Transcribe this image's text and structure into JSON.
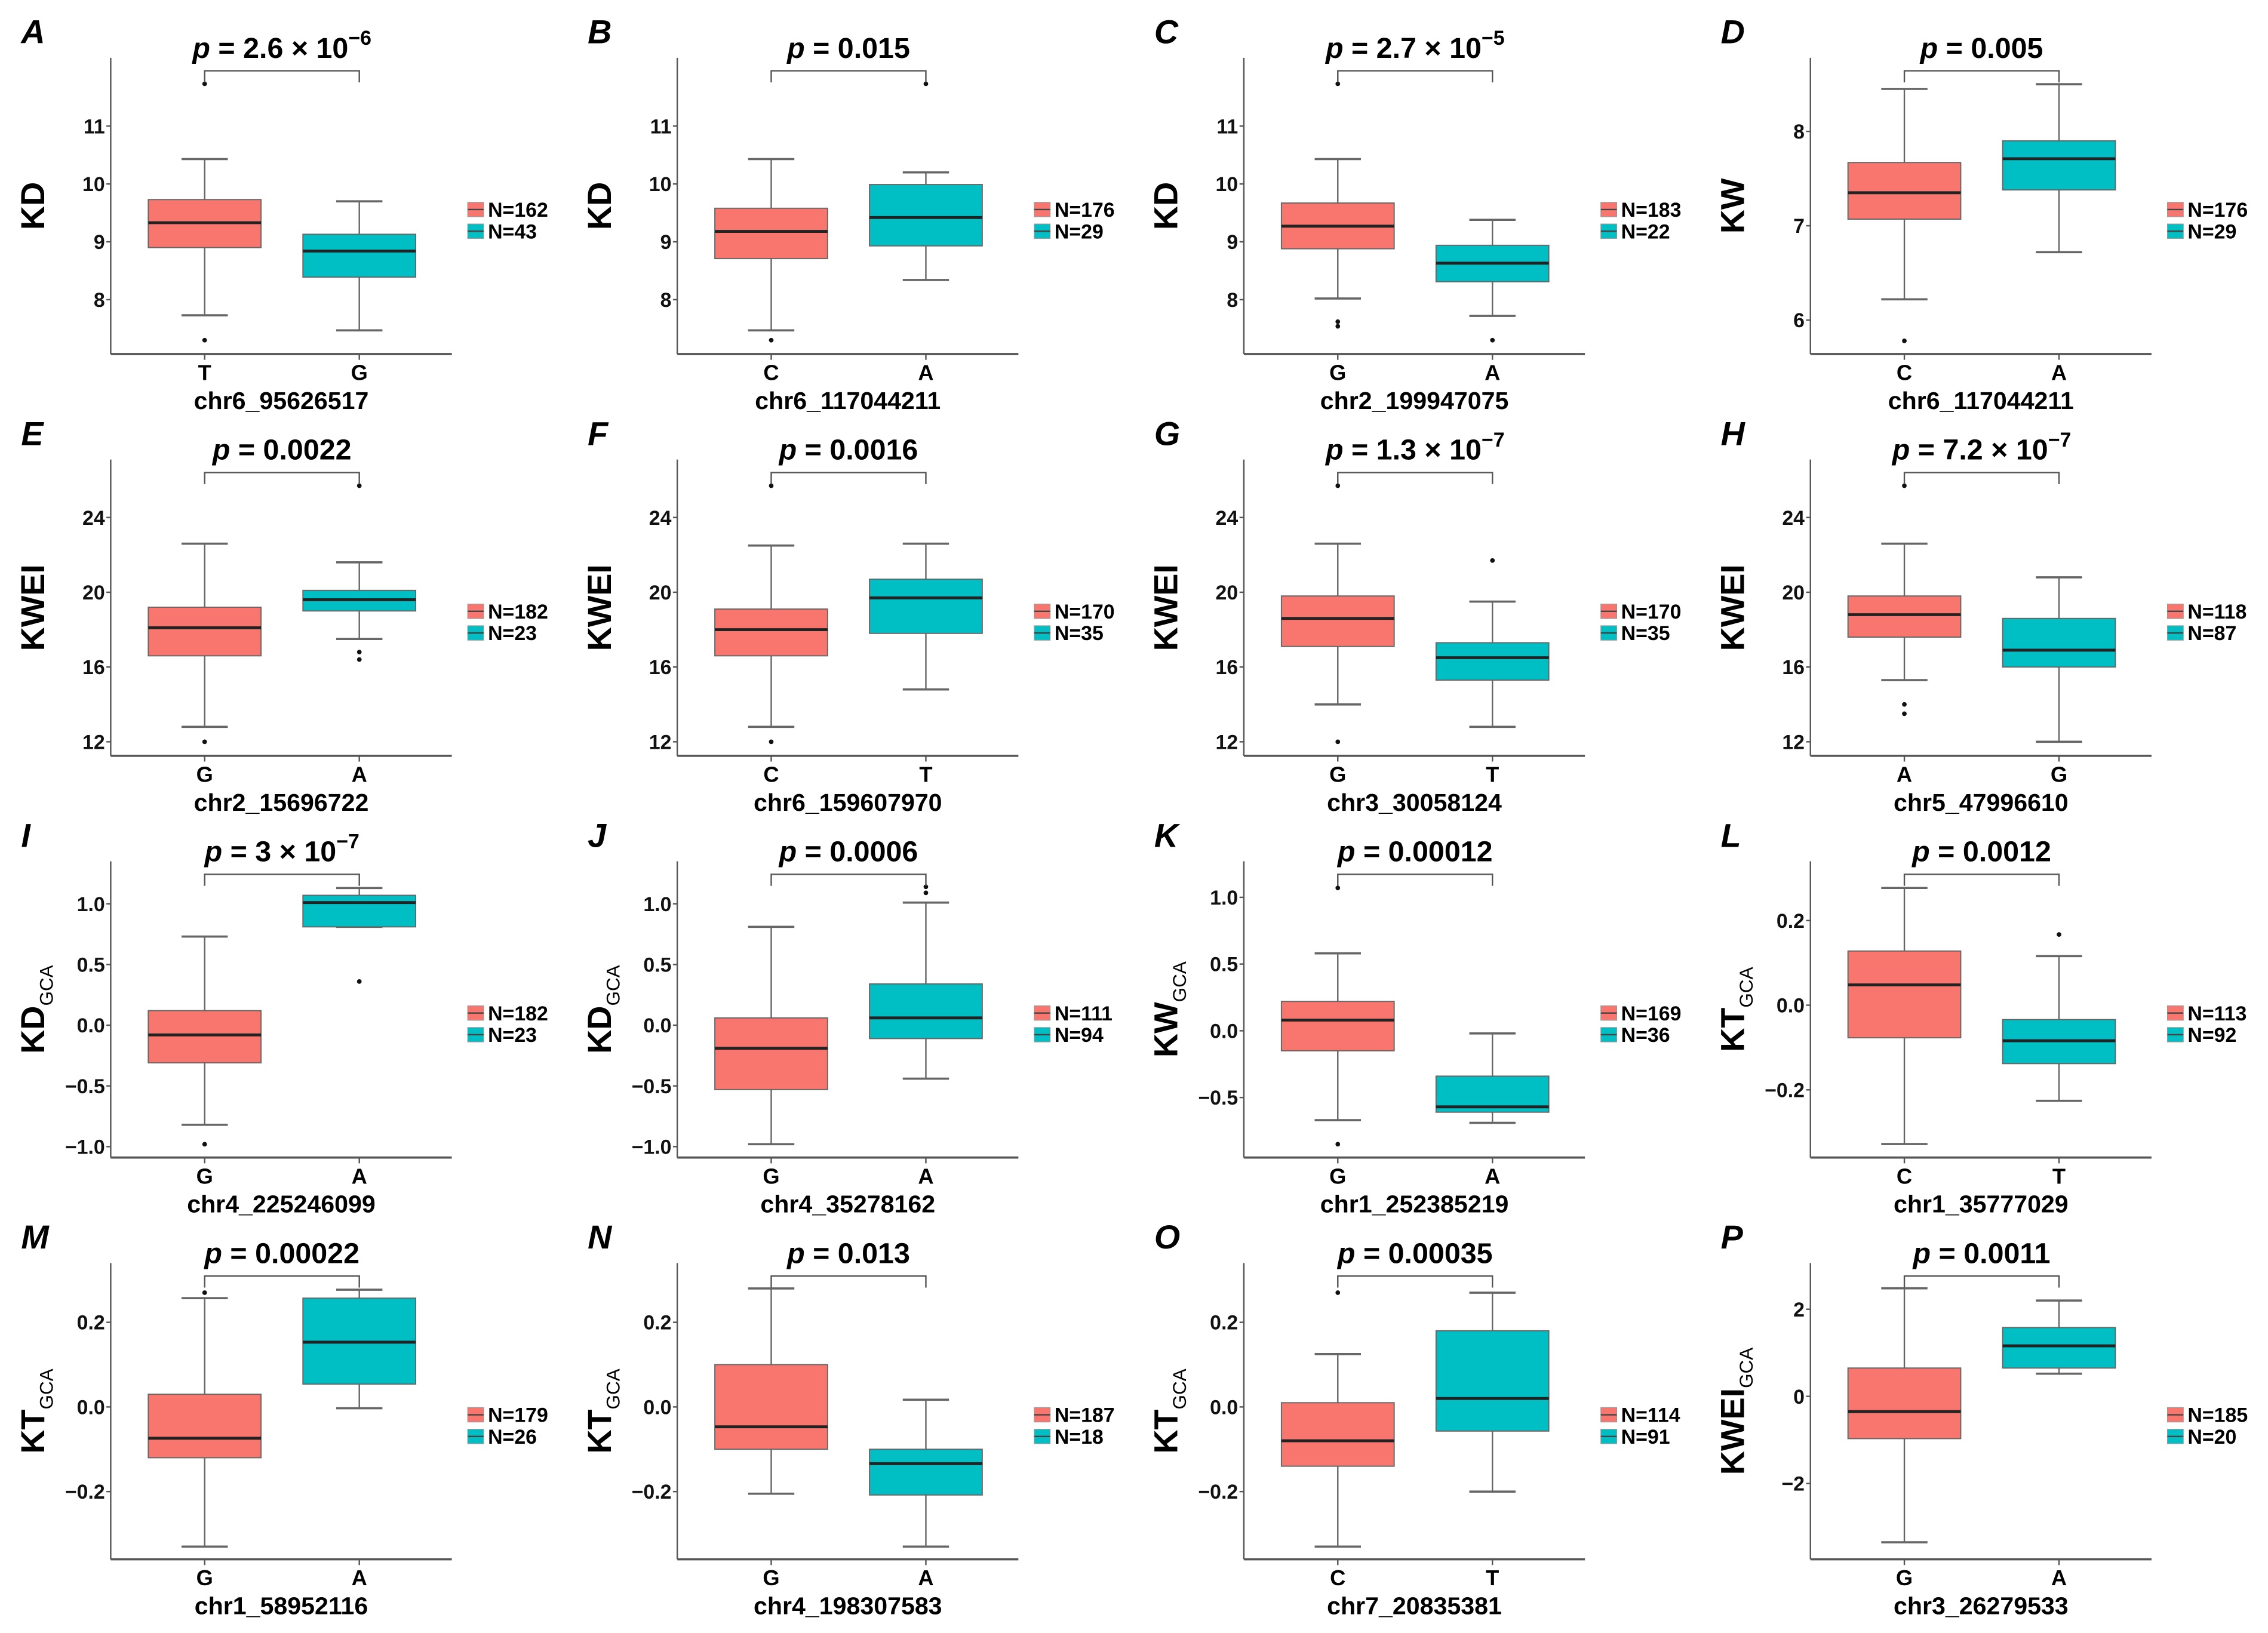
{
  "colors": {
    "group1": "#F8766D",
    "group2": "#00BFC4",
    "axis": "#555555",
    "whisker": "#666666",
    "median": "#222222"
  },
  "chart_data": [
    {
      "type": "box",
      "letter": "A",
      "p_label": "p",
      "p_value": " = 2.6 × 10",
      "p_exp": "−6",
      "ylabel": "KD",
      "ylabel_sub": "",
      "xlabel": "chr6_95626517",
      "ylim": [
        7.06,
        12.18
      ],
      "yticks": [
        8,
        9,
        10,
        11
      ],
      "ytick_labels": [
        "8",
        "9",
        "10",
        "11"
      ],
      "groups": [
        {
          "allele": "T",
          "n_label": "N=162",
          "low": 7.73,
          "q1": 8.9,
          "median": 9.33,
          "q3": 9.73,
          "high": 10.43,
          "outliers": [
            11.73,
            7.3
          ]
        },
        {
          "allele": "G",
          "n_label": "N=43",
          "low": 7.47,
          "q1": 8.39,
          "median": 8.84,
          "q3": 9.13,
          "high": 9.7,
          "outliers": []
        }
      ]
    },
    {
      "type": "box",
      "letter": "B",
      "p_label": "p",
      "p_value": " = 0.015",
      "p_exp": "",
      "ylabel": "KD",
      "ylabel_sub": "",
      "xlabel": "chr6_117044211",
      "ylim": [
        7.06,
        12.18
      ],
      "yticks": [
        8,
        9,
        10,
        11
      ],
      "ytick_labels": [
        "8",
        "9",
        "10",
        "11"
      ],
      "groups": [
        {
          "allele": "C",
          "n_label": "N=176",
          "low": 7.47,
          "q1": 8.71,
          "median": 9.18,
          "q3": 9.58,
          "high": 10.43,
          "outliers": [
            7.3
          ]
        },
        {
          "allele": "A",
          "n_label": "N=29",
          "low": 8.34,
          "q1": 8.93,
          "median": 9.42,
          "q3": 9.99,
          "high": 10.2,
          "outliers": [
            11.73
          ]
        }
      ]
    },
    {
      "type": "box",
      "letter": "C",
      "p_label": "p",
      "p_value": " = 2.7 × 10",
      "p_exp": "−5",
      "ylabel": "KD",
      "ylabel_sub": "",
      "xlabel": "chr2_199947075",
      "ylim": [
        7.06,
        12.18
      ],
      "yticks": [
        8,
        9,
        10,
        11
      ],
      "ytick_labels": [
        "8",
        "9",
        "10",
        "11"
      ],
      "groups": [
        {
          "allele": "G",
          "n_label": "N=183",
          "low": 8.02,
          "q1": 8.88,
          "median": 9.27,
          "q3": 9.67,
          "high": 10.43,
          "outliers": [
            11.73,
            7.62,
            7.54
          ]
        },
        {
          "allele": "A",
          "n_label": "N=22",
          "low": 7.72,
          "q1": 8.31,
          "median": 8.63,
          "q3": 8.94,
          "high": 9.38,
          "outliers": [
            7.3
          ]
        }
      ]
    },
    {
      "type": "box",
      "letter": "D",
      "p_label": "p",
      "p_value": " = 0.005",
      "p_exp": "",
      "ylabel": "KW",
      "ylabel_sub": "",
      "xlabel": "chr6_117044211",
      "ylim": [
        5.64,
        8.78
      ],
      "yticks": [
        6,
        7,
        8
      ],
      "ytick_labels": [
        "6",
        "7",
        "8"
      ],
      "groups": [
        {
          "allele": "C",
          "n_label": "N=176",
          "low": 6.22,
          "q1": 7.07,
          "median": 7.35,
          "q3": 7.67,
          "high": 8.45,
          "outliers": [
            5.78
          ]
        },
        {
          "allele": "A",
          "n_label": "N=29",
          "low": 6.72,
          "q1": 7.38,
          "median": 7.71,
          "q3": 7.9,
          "high": 8.5,
          "outliers": []
        }
      ]
    },
    {
      "type": "box",
      "letter": "E",
      "p_label": "p",
      "p_value": " = 0.0022",
      "p_exp": "",
      "ylabel": "KWEI",
      "ylabel_sub": "",
      "xlabel": "chr2_15696722",
      "ylim": [
        11.25,
        27.1
      ],
      "yticks": [
        12,
        16,
        20,
        24
      ],
      "ytick_labels": [
        "12",
        "16",
        "20",
        "24"
      ],
      "groups": [
        {
          "allele": "G",
          "n_label": "N=182",
          "low": 12.8,
          "q1": 16.6,
          "median": 18.1,
          "q3": 19.2,
          "high": 22.6,
          "outliers": [
            12.0
          ]
        },
        {
          "allele": "A",
          "n_label": "N=23",
          "low": 17.5,
          "q1": 19.0,
          "median": 19.6,
          "q3": 20.1,
          "high": 21.6,
          "outliers": [
            25.7,
            16.8,
            16.4
          ]
        }
      ]
    },
    {
      "type": "box",
      "letter": "F",
      "p_label": "p",
      "p_value": " = 0.0016",
      "p_exp": "",
      "ylabel": "KWEI",
      "ylabel_sub": "",
      "xlabel": "chr6_159607970",
      "ylim": [
        11.25,
        27.1
      ],
      "yticks": [
        12,
        16,
        20,
        24
      ],
      "ytick_labels": [
        "12",
        "16",
        "20",
        "24"
      ],
      "groups": [
        {
          "allele": "C",
          "n_label": "N=170",
          "low": 12.8,
          "q1": 16.6,
          "median": 18.0,
          "q3": 19.1,
          "high": 22.5,
          "outliers": [
            25.7,
            12.0
          ]
        },
        {
          "allele": "T",
          "n_label": "N=35",
          "low": 14.8,
          "q1": 17.8,
          "median": 19.7,
          "q3": 20.7,
          "high": 22.6,
          "outliers": []
        }
      ]
    },
    {
      "type": "box",
      "letter": "G",
      "p_label": "p",
      "p_value": " = 1.3 × 10",
      "p_exp": "−7",
      "ylabel": "KWEI",
      "ylabel_sub": "",
      "xlabel": "chr3_30058124",
      "ylim": [
        11.25,
        27.1
      ],
      "yticks": [
        12,
        16,
        20,
        24
      ],
      "ytick_labels": [
        "12",
        "16",
        "20",
        "24"
      ],
      "groups": [
        {
          "allele": "G",
          "n_label": "N=170",
          "low": 14.0,
          "q1": 17.1,
          "median": 18.6,
          "q3": 19.8,
          "high": 22.6,
          "outliers": [
            25.7,
            12.0
          ]
        },
        {
          "allele": "T",
          "n_label": "N=35",
          "low": 12.8,
          "q1": 15.3,
          "median": 16.5,
          "q3": 17.3,
          "high": 19.5,
          "outliers": [
            21.7
          ]
        }
      ]
    },
    {
      "type": "box",
      "letter": "H",
      "p_label": "p",
      "p_value": " = 7.2 × 10",
      "p_exp": "−7",
      "ylabel": "KWEI",
      "ylabel_sub": "",
      "xlabel": "chr5_47996610",
      "ylim": [
        11.25,
        27.1
      ],
      "yticks": [
        12,
        16,
        20,
        24
      ],
      "ytick_labels": [
        "12",
        "16",
        "20",
        "24"
      ],
      "groups": [
        {
          "allele": "A",
          "n_label": "N=118",
          "low": 15.3,
          "q1": 17.6,
          "median": 18.8,
          "q3": 19.8,
          "high": 22.6,
          "outliers": [
            25.7,
            14.0,
            13.5
          ]
        },
        {
          "allele": "G",
          "n_label": "N=87",
          "low": 12.0,
          "q1": 16.0,
          "median": 16.9,
          "q3": 18.6,
          "high": 20.8,
          "outliers": []
        }
      ]
    },
    {
      "type": "box",
      "letter": "I",
      "p_label": "p",
      "p_value": " = 3 × 10",
      "p_exp": "−7",
      "ylabel": "KD",
      "ylabel_sub": "GCA",
      "xlabel": "chr4_225246099",
      "ylim": [
        -1.09,
        1.35
      ],
      "yticks": [
        -1,
        -0.5,
        0,
        0.5,
        1
      ],
      "ytick_labels": [
        "−1.0",
        "−0.5",
        "0.0",
        "0.5",
        "1.0"
      ],
      "groups": [
        {
          "allele": "G",
          "n_label": "N=182",
          "low": -0.82,
          "q1": -0.31,
          "median": -0.08,
          "q3": 0.12,
          "high": 0.73,
          "outliers": [
            -0.98
          ]
        },
        {
          "allele": "A",
          "n_label": "N=23",
          "low": 0.81,
          "q1": 0.81,
          "median": 1.01,
          "q3": 1.07,
          "high": 1.13,
          "outliers": [
            0.36
          ]
        }
      ]
    },
    {
      "type": "box",
      "letter": "J",
      "p_label": "p",
      "p_value": " = 0.0006",
      "p_exp": "",
      "ylabel": "KD",
      "ylabel_sub": "GCA",
      "xlabel": "chr4_35278162",
      "ylim": [
        -1.09,
        1.35
      ],
      "yticks": [
        -1,
        -0.5,
        0,
        0.5,
        1
      ],
      "ytick_labels": [
        "−1.0",
        "−0.5",
        "0.0",
        "0.5",
        "1.0"
      ],
      "groups": [
        {
          "allele": "G",
          "n_label": "N=111",
          "low": -0.98,
          "q1": -0.53,
          "median": -0.19,
          "q3": 0.06,
          "high": 0.81,
          "outliers": []
        },
        {
          "allele": "A",
          "n_label": "N=94",
          "low": -0.44,
          "q1": -0.11,
          "median": 0.06,
          "q3": 0.34,
          "high": 1.01,
          "outliers": [
            1.14,
            1.09
          ]
        }
      ]
    },
    {
      "type": "box",
      "letter": "K",
      "p_label": "p",
      "p_value": " = 0.00012",
      "p_exp": "",
      "ylabel": "KW",
      "ylabel_sub": "GCA",
      "xlabel": "chr1_252385219",
      "ylim": [
        -0.95,
        1.27
      ],
      "yticks": [
        -0.5,
        0,
        0.5,
        1
      ],
      "ytick_labels": [
        "−0.5",
        "0.0",
        "0.5",
        "1.0"
      ],
      "groups": [
        {
          "allele": "G",
          "n_label": "N=169",
          "low": -0.67,
          "q1": -0.15,
          "median": 0.08,
          "q3": 0.22,
          "high": 0.58,
          "outliers": [
            1.07,
            -0.85
          ]
        },
        {
          "allele": "A",
          "n_label": "N=36",
          "low": -0.69,
          "q1": -0.61,
          "median": -0.57,
          "q3": -0.34,
          "high": -0.02,
          "outliers": []
        }
      ]
    },
    {
      "type": "box",
      "letter": "L",
      "p_label": "p",
      "p_value": " = 0.0012",
      "p_exp": "",
      "ylabel": "KT",
      "ylabel_sub": "GCA",
      "xlabel": "chr1_35777029",
      "ylim": [
        -0.36,
        0.34
      ],
      "yticks": [
        -0.2,
        0,
        0.2
      ],
      "ytick_labels": [
        "−0.2",
        "0.0",
        "0.2"
      ],
      "groups": [
        {
          "allele": "C",
          "n_label": "N=113",
          "low": -0.328,
          "q1": -0.077,
          "median": 0.048,
          "q3": 0.128,
          "high": 0.277,
          "outliers": []
        },
        {
          "allele": "T",
          "n_label": "N=92",
          "low": -0.226,
          "q1": -0.138,
          "median": -0.084,
          "q3": -0.034,
          "high": 0.116,
          "outliers": [
            0.167
          ]
        }
      ]
    },
    {
      "type": "box",
      "letter": "M",
      "p_label": "p",
      "p_value": " = 0.00022",
      "p_exp": "",
      "ylabel": "KT",
      "ylabel_sub": "GCA",
      "xlabel": "chr1_58952116",
      "ylim": [
        -0.36,
        0.34
      ],
      "yticks": [
        -0.2,
        0,
        0.2
      ],
      "ytick_labels": [
        "−0.2",
        "0.0",
        "0.2"
      ],
      "groups": [
        {
          "allele": "G",
          "n_label": "N=179",
          "low": -0.33,
          "q1": -0.12,
          "median": -0.074,
          "q3": 0.03,
          "high": 0.257,
          "outliers": [
            0.27
          ]
        },
        {
          "allele": "A",
          "n_label": "N=26",
          "low": -0.003,
          "q1": 0.054,
          "median": 0.153,
          "q3": 0.257,
          "high": 0.277,
          "outliers": []
        }
      ]
    },
    {
      "type": "box",
      "letter": "N",
      "p_label": "p",
      "p_value": " = 0.013",
      "p_exp": "",
      "ylabel": "KT",
      "ylabel_sub": "GCA",
      "xlabel": "chr4_198307583",
      "ylim": [
        -0.36,
        0.34
      ],
      "yticks": [
        -0.2,
        0,
        0.2
      ],
      "ytick_labels": [
        "−0.2",
        "0.0",
        "0.2"
      ],
      "groups": [
        {
          "allele": "G",
          "n_label": "N=187",
          "low": -0.205,
          "q1": -0.1,
          "median": -0.047,
          "q3": 0.1,
          "high": 0.28,
          "outliers": []
        },
        {
          "allele": "A",
          "n_label": "N=18",
          "low": -0.33,
          "q1": -0.208,
          "median": -0.134,
          "q3": -0.1,
          "high": 0.017,
          "outliers": []
        }
      ]
    },
    {
      "type": "box",
      "letter": "O",
      "p_label": "p",
      "p_value": " = 0.00035",
      "p_exp": "",
      "ylabel": "KT",
      "ylabel_sub": "GCA",
      "xlabel": "chr7_20835381",
      "ylim": [
        -0.36,
        0.34
      ],
      "yticks": [
        -0.2,
        0,
        0.2
      ],
      "ytick_labels": [
        "−0.2",
        "0.0",
        "0.2"
      ],
      "groups": [
        {
          "allele": "C",
          "n_label": "N=114",
          "low": -0.33,
          "q1": -0.14,
          "median": -0.08,
          "q3": 0.01,
          "high": 0.125,
          "outliers": [
            0.27
          ]
        },
        {
          "allele": "T",
          "n_label": "N=91",
          "low": -0.2,
          "q1": -0.057,
          "median": 0.02,
          "q3": 0.18,
          "high": 0.27,
          "outliers": []
        }
      ]
    },
    {
      "type": "box",
      "letter": "P",
      "p_label": "p",
      "p_value": " = 0.0011",
      "p_exp": "",
      "ylabel": "KWEI",
      "ylabel_sub": "GCA",
      "xlabel": "chr3_26279533",
      "ylim": [
        -3.74,
        3.06
      ],
      "yticks": [
        -2,
        0,
        2
      ],
      "ytick_labels": [
        "−2",
        "0",
        "2"
      ],
      "groups": [
        {
          "allele": "G",
          "n_label": "N=185",
          "low": -3.35,
          "q1": -0.97,
          "median": -0.35,
          "q3": 0.65,
          "high": 2.48,
          "outliers": []
        },
        {
          "allele": "A",
          "n_label": "N=20",
          "low": 0.52,
          "q1": 0.65,
          "median": 1.16,
          "q3": 1.58,
          "high": 2.2,
          "outliers": []
        }
      ]
    }
  ]
}
